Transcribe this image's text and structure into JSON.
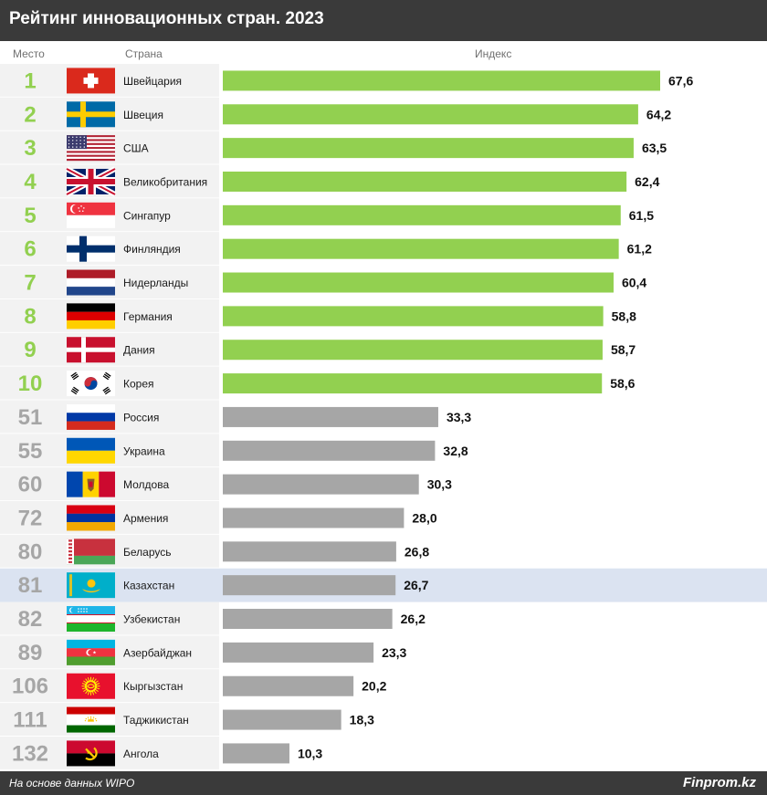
{
  "title": "Рейтинг инновационных стран. 2023",
  "headers": {
    "place": "Место",
    "country": "Страна",
    "index": "Индекс"
  },
  "footer": {
    "source": "На основе данных WIPO",
    "brand": "Finprom.kz"
  },
  "colors": {
    "top_bar": "#92d050",
    "other_bar": "#a6a6a6",
    "top_rank": "#92d050",
    "other_rank": "#a6a6a6",
    "highlight_row": "#dbe3f1",
    "stripe_row": "#f2f2f2"
  },
  "chart_data": {
    "type": "bar",
    "orientation": "horizontal",
    "xlim": [
      0,
      67.6
    ],
    "highlight": "Казахстан",
    "rows": [
      {
        "rank": "1",
        "country": "Швейцария",
        "value": 67.6,
        "label": "67,6",
        "flag": "switzerland-flag-icon"
      },
      {
        "rank": "2",
        "country": "Швеция",
        "value": 64.2,
        "label": "64,2",
        "flag": "sweden-flag-icon"
      },
      {
        "rank": "3",
        "country": "США",
        "value": 63.5,
        "label": "63,5",
        "flag": "usa-flag-icon"
      },
      {
        "rank": "4",
        "country": "Великобритания",
        "value": 62.4,
        "label": "62,4",
        "flag": "uk-flag-icon"
      },
      {
        "rank": "5",
        "country": "Сингапур",
        "value": 61.5,
        "label": "61,5",
        "flag": "singapore-flag-icon"
      },
      {
        "rank": "6",
        "country": "Финляндия",
        "value": 61.2,
        "label": "61,2",
        "flag": "finland-flag-icon"
      },
      {
        "rank": "7",
        "country": "Нидерланды",
        "value": 60.4,
        "label": "60,4",
        "flag": "netherlands-flag-icon"
      },
      {
        "rank": "8",
        "country": "Германия",
        "value": 58.8,
        "label": "58,8",
        "flag": "germany-flag-icon"
      },
      {
        "rank": "9",
        "country": "Дания",
        "value": 58.7,
        "label": "58,7",
        "flag": "denmark-flag-icon"
      },
      {
        "rank": "10",
        "country": "Корея",
        "value": 58.6,
        "label": "58,6",
        "flag": "korea-flag-icon"
      },
      {
        "rank": "51",
        "country": "Россия",
        "value": 33.3,
        "label": "33,3",
        "flag": "russia-flag-icon"
      },
      {
        "rank": "55",
        "country": "Украина",
        "value": 32.8,
        "label": "32,8",
        "flag": "ukraine-flag-icon"
      },
      {
        "rank": "60",
        "country": "Молдова",
        "value": 30.3,
        "label": "30,3",
        "flag": "moldova-flag-icon"
      },
      {
        "rank": "72",
        "country": "Армения",
        "value": 28.0,
        "label": "28,0",
        "flag": "armenia-flag-icon"
      },
      {
        "rank": "80",
        "country": "Беларусь",
        "value": 26.8,
        "label": "26,8",
        "flag": "belarus-flag-icon"
      },
      {
        "rank": "81",
        "country": "Казахстан",
        "value": 26.7,
        "label": "26,7",
        "flag": "kazakhstan-flag-icon"
      },
      {
        "rank": "82",
        "country": "Узбекистан",
        "value": 26.2,
        "label": "26,2",
        "flag": "uzbekistan-flag-icon"
      },
      {
        "rank": "89",
        "country": "Азербайджан",
        "value": 23.3,
        "label": "23,3",
        "flag": "azerbaijan-flag-icon"
      },
      {
        "rank": "106",
        "country": "Кыргызстан",
        "value": 20.2,
        "label": "20,2",
        "flag": "kyrgyzstan-flag-icon"
      },
      {
        "rank": "111",
        "country": "Таджикистан",
        "value": 18.3,
        "label": "18,3",
        "flag": "tajikistan-flag-icon"
      },
      {
        "rank": "132",
        "country": "Ангола",
        "value": 10.3,
        "label": "10,3",
        "flag": "angola-flag-icon"
      }
    ]
  }
}
